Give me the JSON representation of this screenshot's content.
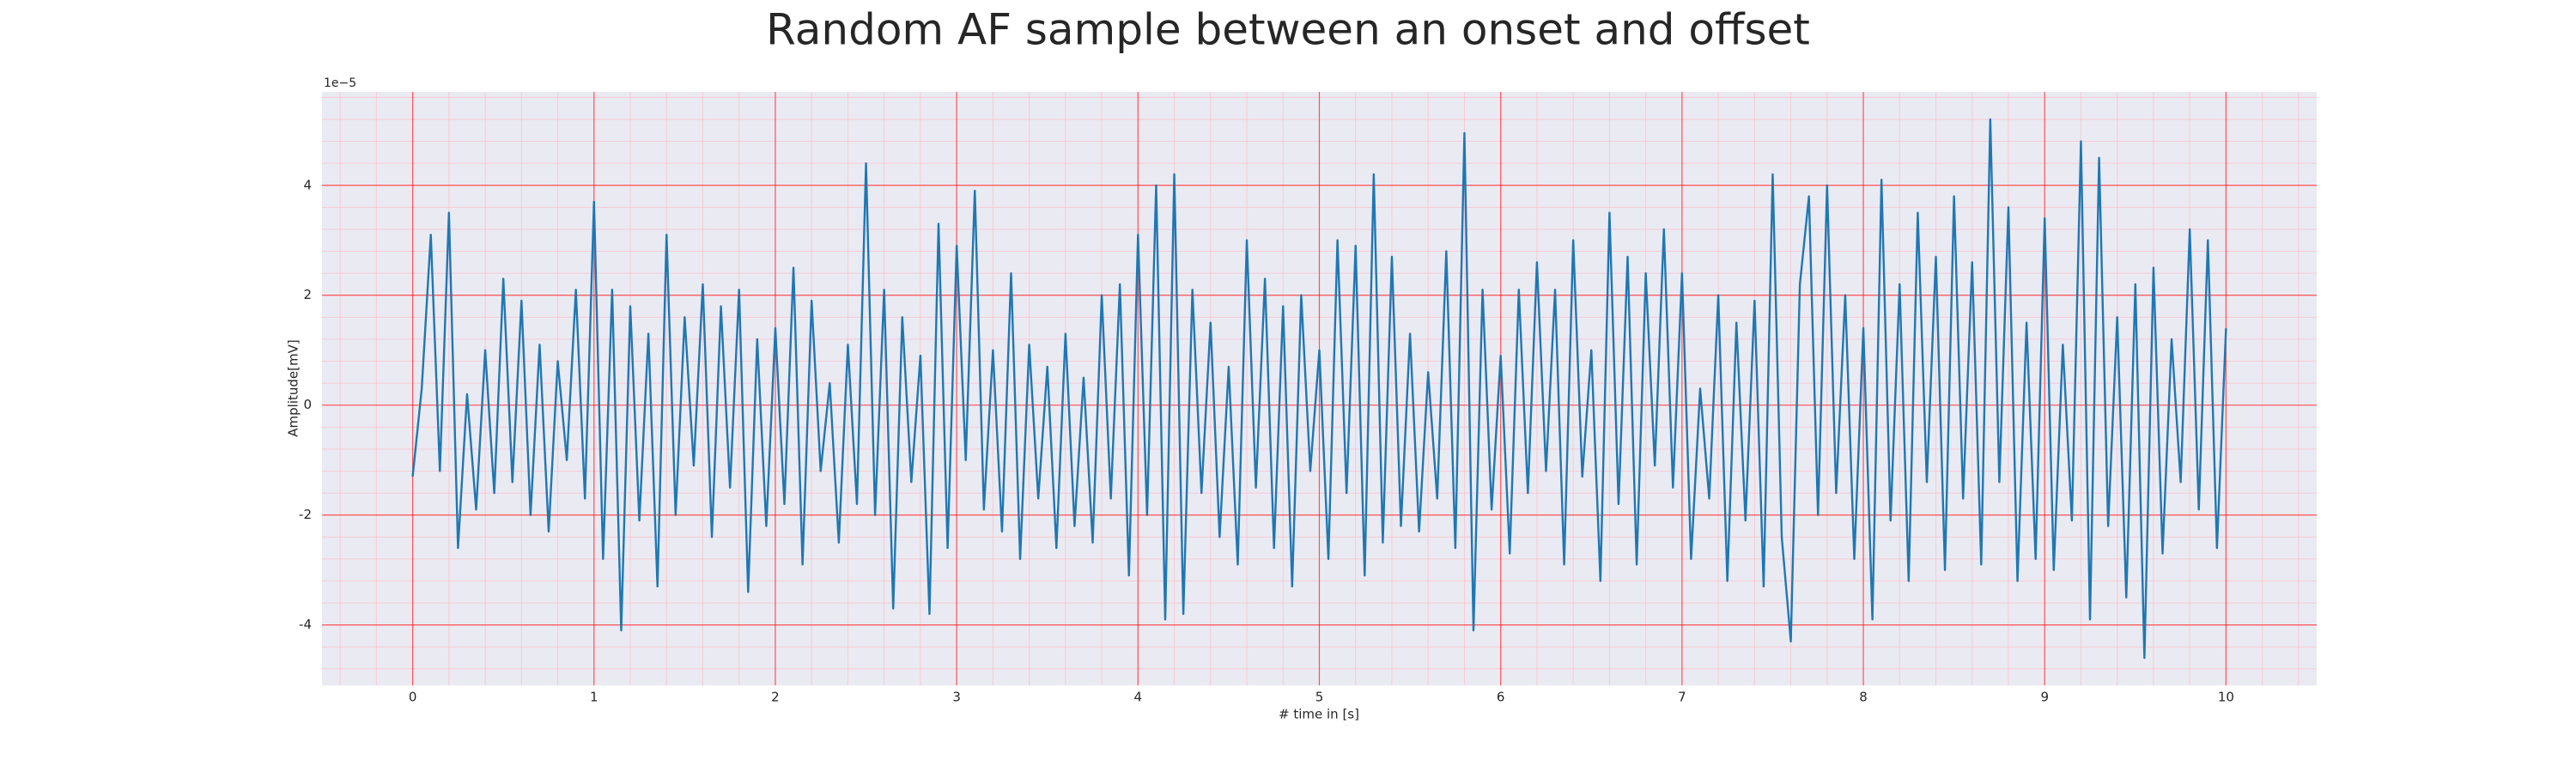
{
  "chart_data": {
    "type": "line",
    "title": "Random AF sample between an onset and offset",
    "xlabel": "# time in [s]",
    "ylabel": "Amplitude[mV]",
    "y_offset_label": "1e−5",
    "x": [
      0,
      0.05,
      0.1,
      0.15,
      0.2,
      0.25,
      0.3,
      0.35,
      0.4,
      0.45,
      0.5,
      0.55,
      0.6,
      0.65,
      0.7,
      0.75,
      0.8,
      0.85,
      0.9,
      0.95,
      1,
      1.05,
      1.1,
      1.15,
      1.2,
      1.25,
      1.3,
      1.35,
      1.4,
      1.45,
      1.5,
      1.55,
      1.6,
      1.65,
      1.7,
      1.75,
      1.8,
      1.85,
      1.9,
      1.95,
      2,
      2.05,
      2.1,
      2.15,
      2.2,
      2.25,
      2.3,
      2.35,
      2.4,
      2.45,
      2.5,
      2.55,
      2.6,
      2.65,
      2.7,
      2.75,
      2.8,
      2.85,
      2.9,
      2.95,
      3,
      3.05,
      3.1,
      3.15,
      3.2,
      3.25,
      3.3,
      3.35,
      3.4,
      3.45,
      3.5,
      3.55,
      3.6,
      3.65,
      3.7,
      3.75,
      3.8,
      3.85,
      3.9,
      3.95,
      4,
      4.05,
      4.1,
      4.15,
      4.2,
      4.25,
      4.3,
      4.35,
      4.4,
      4.45,
      4.5,
      4.55,
      4.6,
      4.65,
      4.7,
      4.75,
      4.8,
      4.85,
      4.9,
      4.95,
      5,
      5.05,
      5.1,
      5.15,
      5.2,
      5.25,
      5.3,
      5.35,
      5.4,
      5.45,
      5.5,
      5.55,
      5.6,
      5.65,
      5.7,
      5.75,
      5.8,
      5.85,
      5.9,
      5.95,
      6,
      6.05,
      6.1,
      6.15,
      6.2,
      6.25,
      6.3,
      6.35,
      6.4,
      6.45,
      6.5,
      6.55,
      6.6,
      6.65,
      6.7,
      6.75,
      6.8,
      6.85,
      6.9,
      6.95,
      7,
      7.05,
      7.1,
      7.15,
      7.2,
      7.25,
      7.3,
      7.35,
      7.4,
      7.45,
      7.5,
      7.55,
      7.6,
      7.65,
      7.7,
      7.75,
      7.8,
      7.85,
      7.9,
      7.95,
      8,
      8.05,
      8.1,
      8.15,
      8.2,
      8.25,
      8.3,
      8.35,
      8.4,
      8.45,
      8.5,
      8.55,
      8.6,
      8.65,
      8.7,
      8.75,
      8.8,
      8.85,
      8.9,
      8.95,
      9,
      9.05,
      9.1,
      9.15,
      9.2,
      9.25,
      9.3,
      9.35,
      9.4,
      9.45,
      9.5,
      9.55,
      9.6,
      9.65,
      9.7,
      9.75,
      9.8,
      9.85,
      9.9,
      9.95,
      10
    ],
    "series": [
      {
        "name": "Amplitude",
        "color": "#1f77b4",
        "values": [
          -1.3,
          0.3,
          3.1,
          -1.2,
          3.5,
          -2.6,
          0.2,
          -1.9,
          1.0,
          -1.6,
          2.3,
          -1.4,
          1.9,
          -2.0,
          1.1,
          -2.3,
          0.8,
          -1.0,
          2.1,
          -1.7,
          3.7,
          -2.8,
          2.1,
          -4.1,
          1.8,
          -2.1,
          1.3,
          -3.3,
          3.1,
          -2.0,
          1.6,
          -1.1,
          2.2,
          -2.4,
          1.8,
          -1.5,
          2.1,
          -3.4,
          1.2,
          -2.2,
          1.4,
          -1.8,
          2.5,
          -2.9,
          1.9,
          -1.2,
          0.4,
          -2.5,
          1.1,
          -1.8,
          4.4,
          -2.0,
          2.1,
          -3.7,
          1.6,
          -1.4,
          0.9,
          -3.8,
          3.3,
          -2.6,
          2.9,
          -1.0,
          3.9,
          -1.9,
          1.0,
          -2.3,
          2.4,
          -2.8,
          1.1,
          -1.7,
          0.7,
          -2.6,
          1.3,
          -2.2,
          0.5,
          -2.5,
          2.0,
          -1.7,
          2.2,
          -3.1,
          3.1,
          -2.0,
          4.0,
          -3.9,
          4.2,
          -3.8,
          2.1,
          -1.6,
          1.5,
          -2.4,
          0.7,
          -2.9,
          3.0,
          -1.5,
          2.3,
          -2.6,
          1.8,
          -3.3,
          2.0,
          -1.2,
          1.0,
          -2.8,
          3.0,
          -1.6,
          2.9,
          -3.1,
          4.2,
          -2.5,
          2.7,
          -2.2,
          1.3,
          -2.3,
          0.6,
          -1.7,
          2.8,
          -2.6,
          4.95,
          -4.1,
          2.1,
          -1.9,
          0.9,
          -2.7,
          2.1,
          -1.6,
          2.6,
          -1.2,
          2.1,
          -2.9,
          3.0,
          -1.3,
          1.0,
          -3.2,
          3.5,
          -1.8,
          2.7,
          -2.9,
          2.4,
          -1.1,
          3.2,
          -1.5,
          2.4,
          -2.8,
          0.3,
          -1.7,
          2.0,
          -3.2,
          1.5,
          -2.1,
          1.9,
          -3.3,
          4.2,
          -2.4,
          -4.3,
          2.2,
          3.8,
          -2.0,
          4.0,
          -1.6,
          2.0,
          -2.8,
          1.4,
          -3.9,
          4.1,
          -2.1,
          2.2,
          -3.2,
          3.5,
          -1.4,
          2.7,
          -3.0,
          3.8,
          -1.7,
          2.6,
          -2.9,
          5.2,
          -1.4,
          3.6,
          -3.2,
          1.5,
          -2.8,
          3.4,
          -3.0,
          1.1,
          -2.1,
          4.8,
          -3.9,
          4.5,
          -2.2,
          1.6,
          -3.5,
          2.2,
          -4.6,
          2.5,
          -2.7,
          1.2,
          -1.4,
          3.2,
          -1.9,
          3.0,
          -2.6,
          1.4
        ]
      }
    ],
    "xlim": [
      -0.5,
      10.5
    ],
    "ylim": [
      -5.1,
      5.7
    ],
    "xticks": [
      0,
      1,
      2,
      3,
      4,
      5,
      6,
      7,
      8,
      9,
      10
    ],
    "yticks": [
      -4,
      -2,
      0,
      2,
      4
    ],
    "grid": true,
    "minor_grid": true
  }
}
